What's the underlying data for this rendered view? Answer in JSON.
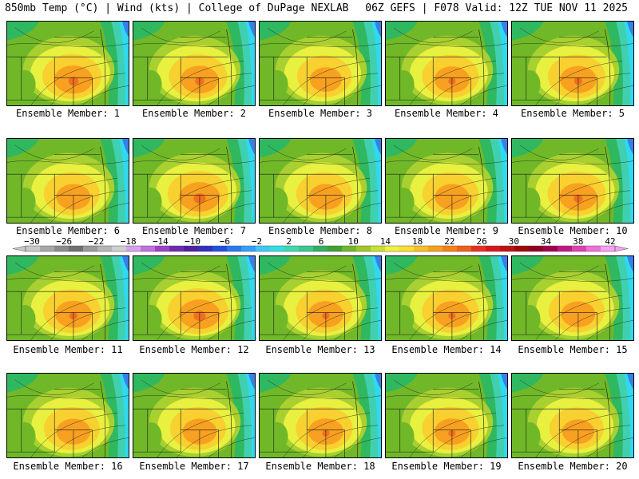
{
  "header": {
    "left_title": "850mb Temp (°C) | Wind (kts) | College of DuPage NEXLAB",
    "right_title": "06Z GEFS | F078 Valid: 12Z TUE NOV 11 2025"
  },
  "members": [
    {
      "label": "Ensemble Member: 1",
      "warm": 0.75
    },
    {
      "label": "Ensemble Member: 2",
      "warm": 0.7
    },
    {
      "label": "Ensemble Member: 3",
      "warm": 0.45
    },
    {
      "label": "Ensemble Member: 4",
      "warm": 0.6
    },
    {
      "label": "Ensemble Member: 5",
      "warm": 0.65
    },
    {
      "label": "Ensemble Member: 6",
      "warm": 0.55
    },
    {
      "label": "Ensemble Member: 7",
      "warm": 0.85
    },
    {
      "label": "Ensemble Member: 8",
      "warm": 0.55
    },
    {
      "label": "Ensemble Member: 9",
      "warm": 0.55
    },
    {
      "label": "Ensemble Member: 10",
      "warm": 0.7
    },
    {
      "label": "Ensemble Member: 11",
      "warm": 0.65
    },
    {
      "label": "Ensemble Member: 12",
      "warm": 0.85
    },
    {
      "label": "Ensemble Member: 13",
      "warm": 0.6
    },
    {
      "label": "Ensemble Member: 14",
      "warm": 0.6
    },
    {
      "label": "Ensemble Member: 15",
      "warm": 0.55
    },
    {
      "label": "Ensemble Member: 16",
      "warm": 0.55
    },
    {
      "label": "Ensemble Member: 17",
      "warm": 0.55
    },
    {
      "label": "Ensemble Member: 18",
      "warm": 0.6
    },
    {
      "label": "Ensemble Member: 19",
      "warm": 0.6
    },
    {
      "label": "Ensemble Member: 20",
      "warm": 0.45
    }
  ],
  "colorbar": {
    "labels": [
      "-30",
      "-26",
      "-22",
      "-18",
      "-14",
      "-10",
      "-6",
      "-2",
      "2",
      "6",
      "10",
      "14",
      "18",
      "22",
      "26",
      "30",
      "34",
      "38",
      "42"
    ],
    "colors": [
      "#c8c8c8",
      "#a8a8a8",
      "#8c8c8c",
      "#707070",
      "#9a9a9a",
      "#b6b6b6",
      "#cfcfcf",
      "#d7a0f0",
      "#c070e0",
      "#a040c8",
      "#7028b0",
      "#5020a0",
      "#3030c0",
      "#2050e0",
      "#2878f0",
      "#30a0f8",
      "#40c8f8",
      "#30e0e0",
      "#40d8b0",
      "#38c890",
      "#30b060",
      "#40a030",
      "#70b828",
      "#a0c828",
      "#c8e030",
      "#f0f040",
      "#f8e030",
      "#f8c020",
      "#f8a018",
      "#f88010",
      "#f06018",
      "#e83020",
      "#d81818",
      "#c01010",
      "#a00808",
      "#900020",
      "#a00050",
      "#c01880",
      "#e040b0",
      "#f070d8",
      "#f8a0f0"
    ]
  },
  "map_colors": {
    "cold1": "#3880e8",
    "cold2": "#30d8f0",
    "cool1": "#40d0b0",
    "cool2": "#30b860",
    "mid1": "#70b828",
    "mid2": "#a8d030",
    "warm1": "#e8f040",
    "warm2": "#f8d030",
    "hot1": "#f8a020",
    "hot2": "#f07020",
    "line": "#1a1a1a"
  }
}
